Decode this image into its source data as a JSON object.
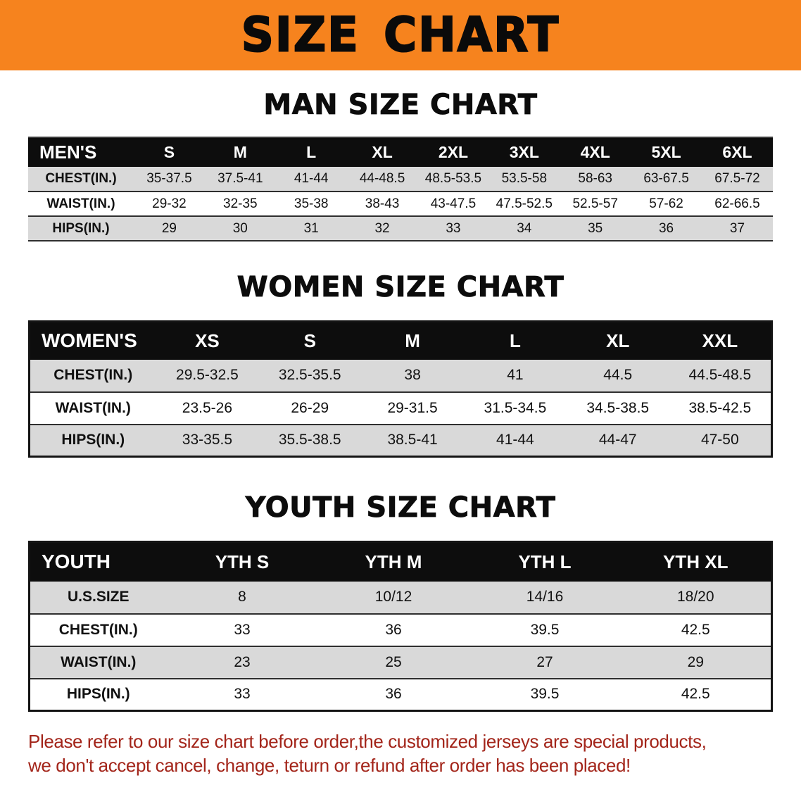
{
  "banner": {
    "title": "SIZE CHART"
  },
  "colors": {
    "banner_bg": "#f6831e",
    "table_header_bg": "#0d0d0d",
    "row_stripe": "#d9d9d9",
    "disclaimer_text": "#a3251a"
  },
  "sections": [
    {
      "id": "men",
      "heading": "MAN SIZE CHART",
      "table": {
        "header": [
          "MEN'S",
          "S",
          "M",
          "L",
          "XL",
          "2XL",
          "3XL",
          "4XL",
          "5XL",
          "6XL"
        ],
        "rows": [
          [
            "CHEST(IN.)",
            "35-37.5",
            "37.5-41",
            "41-44",
            "44-48.5",
            "48.5-53.5",
            "53.5-58",
            "58-63",
            "63-67.5",
            "67.5-72"
          ],
          [
            "WAIST(IN.)",
            "29-32",
            "32-35",
            "35-38",
            "38-43",
            "43-47.5",
            "47.5-52.5",
            "52.5-57",
            "57-62",
            "62-66.5"
          ],
          [
            "HIPS(IN.)",
            "29",
            "30",
            "31",
            "32",
            "33",
            "34",
            "35",
            "36",
            "37"
          ]
        ]
      }
    },
    {
      "id": "women",
      "heading": "WOMEN SIZE CHART",
      "table": {
        "header": [
          "WOMEN'S",
          "XS",
          "S",
          "M",
          "L",
          "XL",
          "XXL"
        ],
        "rows": [
          [
            "CHEST(IN.)",
            "29.5-32.5",
            "32.5-35.5",
            "38",
            "41",
            "44.5",
            "44.5-48.5"
          ],
          [
            "WAIST(IN.)",
            "23.5-26",
            "26-29",
            "29-31.5",
            "31.5-34.5",
            "34.5-38.5",
            "38.5-42.5"
          ],
          [
            "HIPS(IN.)",
            "33-35.5",
            "35.5-38.5",
            "38.5-41",
            "41-44",
            "44-47",
            "47-50"
          ]
        ]
      }
    },
    {
      "id": "youth",
      "heading": "YOUTH SIZE CHART",
      "table": {
        "header": [
          "YOUTH",
          "YTH S",
          "YTH M",
          "YTH L",
          "YTH XL"
        ],
        "rows": [
          [
            "U.S.SIZE",
            "8",
            "10/12",
            "14/16",
            "18/20"
          ],
          [
            "CHEST(IN.)",
            "33",
            "36",
            "39.5",
            "42.5"
          ],
          [
            "WAIST(IN.)",
            "23",
            "25",
            "27",
            "29"
          ],
          [
            "HIPS(IN.)",
            "33",
            "36",
            "39.5",
            "42.5"
          ]
        ]
      }
    }
  ],
  "disclaimer": {
    "line1": "Please refer to our size chart before order,the customized jerseys are special products,",
    "line2": "we don't accept cancel, change, teturn or refund after order has been placed!"
  }
}
